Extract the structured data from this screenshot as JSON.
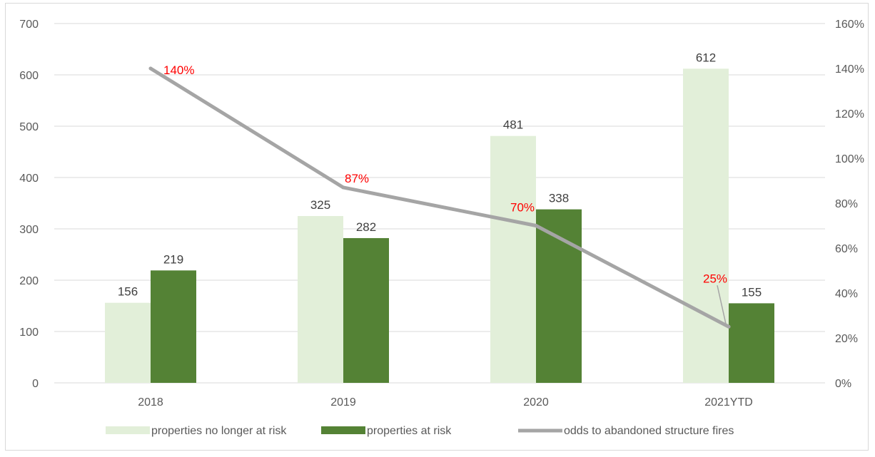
{
  "chart_data": {
    "type": "bar",
    "categories": [
      "2018",
      "2019",
      "2020",
      "2021YTD"
    ],
    "series": [
      {
        "name": "properties no longer at risk",
        "type": "bar",
        "axis": "left",
        "color": "#e2efd9",
        "values": [
          156,
          325,
          481,
          612
        ]
      },
      {
        "name": "properties at risk",
        "type": "bar",
        "axis": "left",
        "color": "#548235",
        "values": [
          219,
          282,
          338,
          155
        ]
      },
      {
        "name": "odds to abandoned structure fires",
        "type": "line",
        "axis": "right",
        "color": "#a5a5a5",
        "values": [
          1.4,
          0.87,
          0.7,
          0.25
        ]
      }
    ],
    "line_labels": [
      "140%",
      "87%",
      "70%",
      "25%"
    ],
    "line_label_color": "#ff0000",
    "ylim": [
      0,
      700
    ],
    "y_ticks": [
      "0",
      "100",
      "200",
      "300",
      "400",
      "500",
      "600",
      "700"
    ],
    "y2lim": [
      0,
      1.6
    ],
    "y2_ticks": [
      "0%",
      "20%",
      "40%",
      "60%",
      "80%",
      "100%",
      "120%",
      "140%",
      "160%"
    ],
    "grid": true,
    "legend": "bottom",
    "title": "",
    "xlabel": "",
    "ylabel": ""
  }
}
